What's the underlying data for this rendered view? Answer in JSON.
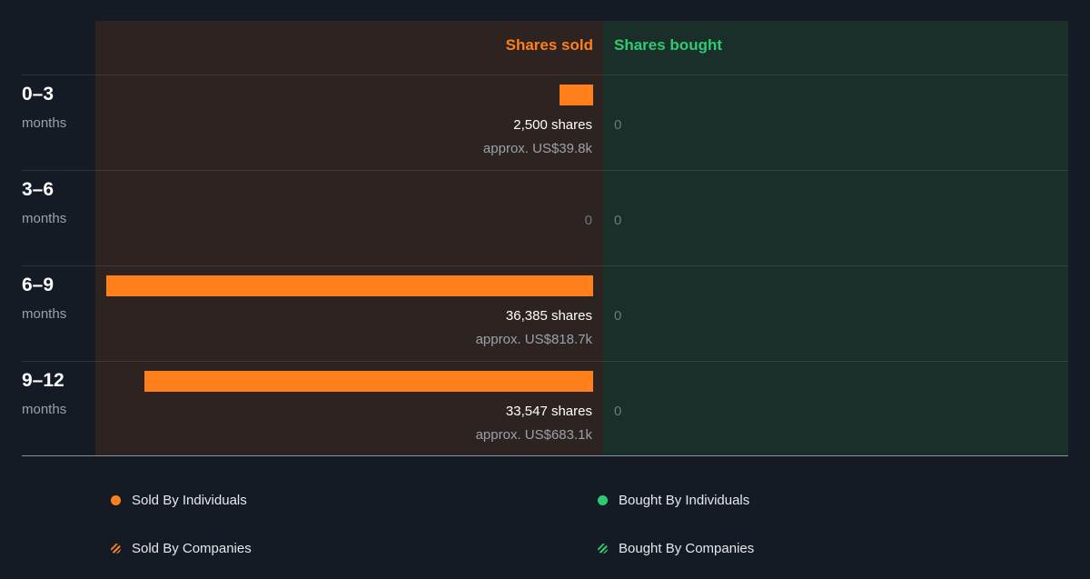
{
  "chart_data": {
    "type": "bar",
    "orientation": "horizontal-diverging",
    "headers": {
      "sold": "Shares sold",
      "bought": "Shares bought"
    },
    "periods": [
      {
        "label": "0–3",
        "unit": "months",
        "sold_shares": 2500,
        "sold_shares_label": "2,500 shares",
        "sold_approx": "approx. US$39.8k",
        "bought_shares": 0,
        "bought_label": "0"
      },
      {
        "label": "3–6",
        "unit": "months",
        "sold_shares": 0,
        "sold_shares_label": "",
        "sold_approx": "",
        "sold_zero_label": "0",
        "bought_shares": 0,
        "bought_label": "0"
      },
      {
        "label": "6–9",
        "unit": "months",
        "sold_shares": 36385,
        "sold_shares_label": "36,385 shares",
        "sold_approx": "approx. US$818.7k",
        "bought_shares": 0,
        "bought_label": "0"
      },
      {
        "label": "9–12",
        "unit": "months",
        "sold_shares": 33547,
        "sold_shares_label": "33,547 shares",
        "sold_approx": "approx. US$683.1k",
        "bought_shares": 0,
        "bought_label": "0"
      }
    ],
    "legend": [
      {
        "label": "Sold By Individuals",
        "color": "#ff7f1a",
        "style": "solid"
      },
      {
        "label": "Bought By Individuals",
        "color": "#2ecc71",
        "style": "solid"
      },
      {
        "label": "Sold By Companies",
        "color": "#ff7f1a",
        "style": "hatched"
      },
      {
        "label": "Bought By Companies",
        "color": "#2ecc71",
        "style": "hatched"
      }
    ],
    "colors": {
      "sold": "#ff7f1a",
      "bought": "#2ecc71"
    }
  }
}
